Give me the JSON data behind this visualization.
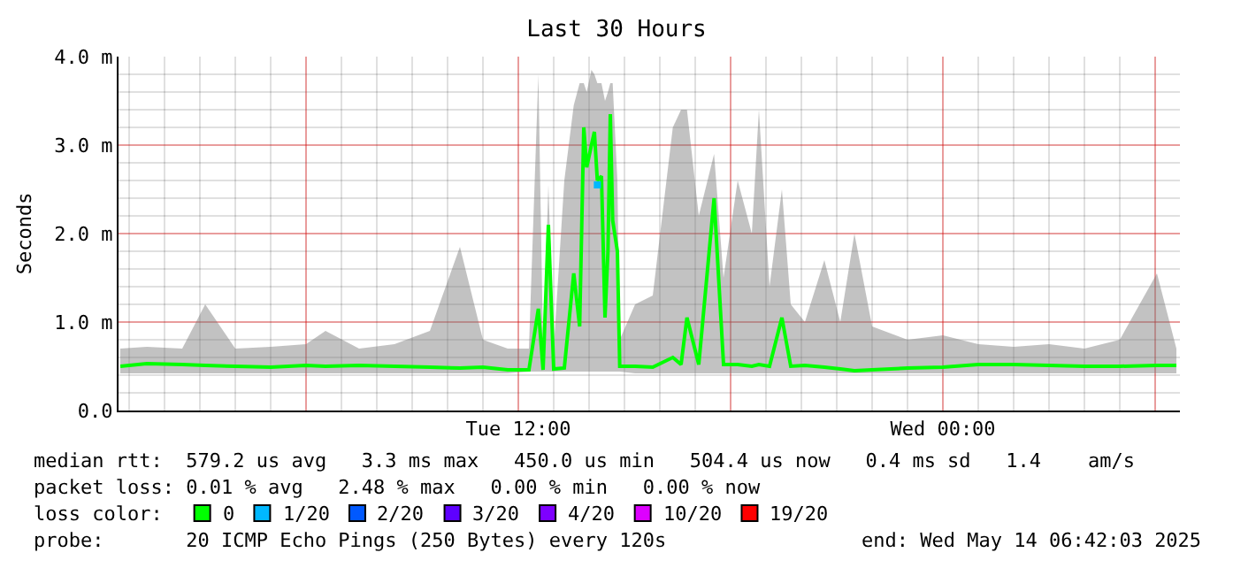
{
  "chart_data": {
    "type": "line",
    "title": "Last 30 Hours",
    "ylabel": "Seconds",
    "legend_title": "loss color:",
    "x": [
      "2025-05-13T00:45",
      "2025-05-13T01:30",
      "2025-05-13T02:30",
      "2025-05-13T03:09",
      "2025-05-13T04:00",
      "2025-05-13T05:00",
      "2025-05-13T06:00",
      "2025-05-13T06:33",
      "2025-05-13T07:30",
      "2025-05-13T08:30",
      "2025-05-13T09:30",
      "2025-05-13T10:21",
      "2025-05-13T11:00",
      "2025-05-13T11:42",
      "2025-05-13T12:18",
      "2025-05-13T12:34",
      "2025-05-13T12:42",
      "2025-05-13T12:51",
      "2025-05-13T13:00",
      "2025-05-13T13:18",
      "2025-05-13T13:34",
      "2025-05-13T13:44",
      "2025-05-13T13:51",
      "2025-05-13T13:56",
      "2025-05-13T14:04",
      "2025-05-13T14:09",
      "2025-05-13T14:14",
      "2025-05-13T14:21",
      "2025-05-13T14:27",
      "2025-05-13T14:32",
      "2025-05-13T14:36",
      "2025-05-13T14:40",
      "2025-05-13T14:48",
      "2025-05-13T14:52",
      "2025-05-13T15:18",
      "2025-05-13T15:48",
      "2025-05-13T16:22",
      "2025-05-13T16:36",
      "2025-05-13T16:46",
      "2025-05-13T17:06",
      "2025-05-13T17:32",
      "2025-05-13T17:48",
      "2025-05-13T18:12",
      "2025-05-13T18:36",
      "2025-05-13T18:48",
      "2025-05-13T19:06",
      "2025-05-13T19:27",
      "2025-05-13T19:42",
      "2025-05-13T20:06",
      "2025-05-13T20:39",
      "2025-05-13T21:06",
      "2025-05-13T21:30",
      "2025-05-13T22:00",
      "2025-05-13T23:00",
      "2025-05-14T00:00",
      "2025-05-14T01:00",
      "2025-05-14T02:00",
      "2025-05-14T03:00",
      "2025-05-14T04:00",
      "2025-05-14T05:00",
      "2025-05-14T06:03",
      "2025-05-14T06:36"
    ],
    "series": [
      {
        "name": "0",
        "color": "#00ff00",
        "values": [
          0.5,
          0.53,
          0.52,
          0.51,
          0.5,
          0.49,
          0.51,
          0.5,
          0.51,
          0.5,
          0.49,
          0.48,
          0.49,
          0.46,
          0.46,
          1.15,
          0.46,
          2.1,
          0.47,
          0.48,
          1.55,
          0.95,
          3.2,
          2.75,
          3.0,
          3.15,
          2.6,
          2.65,
          1.05,
          1.8,
          3.35,
          2.15,
          1.8,
          0.5,
          0.5,
          0.49,
          0.6,
          0.52,
          1.05,
          0.52,
          2.4,
          0.52,
          0.52,
          0.5,
          0.52,
          0.5,
          1.05,
          0.5,
          0.51,
          0.49,
          0.47,
          0.45,
          0.46,
          0.48,
          0.49,
          0.52,
          0.52,
          0.51,
          0.5,
          0.5,
          0.51,
          0.51
        ],
        "lower": [
          0.42,
          0.42,
          0.42,
          0.42,
          0.42,
          0.42,
          0.42,
          0.42,
          0.42,
          0.42,
          0.42,
          0.42,
          0.42,
          0.42,
          0.44,
          0.44,
          0.44,
          0.44,
          0.44,
          0.44,
          0.44,
          0.44,
          0.44,
          0.44,
          0.44,
          0.44,
          0.44,
          0.44,
          0.44,
          0.44,
          0.44,
          0.44,
          0.44,
          0.44,
          0.42,
          0.42,
          0.42,
          0.42,
          0.42,
          0.42,
          0.42,
          0.42,
          0.42,
          0.42,
          0.42,
          0.42,
          0.42,
          0.42,
          0.42,
          0.42,
          0.42,
          0.42,
          0.42,
          0.42,
          0.42,
          0.42,
          0.42,
          0.42,
          0.42,
          0.42,
          0.42,
          0.42
        ],
        "upper": [
          0.7,
          0.72,
          0.7,
          1.2,
          0.7,
          0.72,
          0.75,
          0.9,
          0.7,
          0.75,
          0.9,
          1.85,
          0.8,
          0.7,
          0.7,
          3.8,
          0.7,
          2.55,
          0.7,
          2.6,
          3.45,
          3.7,
          3.7,
          3.6,
          3.85,
          3.8,
          3.7,
          3.7,
          3.5,
          3.6,
          3.7,
          3.7,
          2.6,
          0.8,
          1.2,
          1.3,
          3.2,
          3.4,
          3.4,
          2.2,
          2.9,
          1.5,
          2.6,
          2.0,
          3.4,
          1.4,
          2.5,
          1.2,
          1.0,
          1.7,
          1.0,
          2.0,
          0.95,
          0.8,
          0.85,
          0.75,
          0.72,
          0.75,
          0.7,
          0.8,
          1.55,
          0.7
        ]
      },
      {
        "name": "1/20",
        "color": "#00b8ff",
        "type": "scatter",
        "marker": "square",
        "x": [
          "2025-05-13T14:14"
        ],
        "values": [
          2.55
        ]
      },
      {
        "name": "2/20",
        "color": "#0059ff",
        "type": "scatter",
        "values": [
          null,
          null,
          null,
          null,
          null,
          null,
          null,
          null,
          null,
          null,
          null,
          null,
          null,
          null,
          null,
          null,
          null,
          null,
          null,
          null,
          null,
          null,
          null,
          null,
          null,
          null,
          null,
          null,
          null,
          null,
          null,
          null,
          null,
          null,
          null,
          null,
          null,
          null,
          null,
          null,
          null,
          null,
          null,
          null,
          null,
          null,
          null,
          null,
          null,
          null,
          null,
          null,
          null,
          null,
          null,
          null,
          null,
          null,
          null,
          null,
          null,
          null
        ]
      },
      {
        "name": "3/20",
        "color": "#5e00ff",
        "type": "scatter",
        "values": [
          null,
          null,
          null,
          null,
          null,
          null,
          null,
          null,
          null,
          null,
          null,
          null,
          null,
          null,
          null,
          null,
          null,
          null,
          null,
          null,
          null,
          null,
          null,
          null,
          null,
          null,
          null,
          null,
          null,
          null,
          null,
          null,
          null,
          null,
          null,
          null,
          null,
          null,
          null,
          null,
          null,
          null,
          null,
          null,
          null,
          null,
          null,
          null,
          null,
          null,
          null,
          null,
          null,
          null,
          null,
          null,
          null,
          null,
          null,
          null,
          null,
          null
        ]
      },
      {
        "name": "4/20",
        "color": "#7e00ff",
        "type": "scatter",
        "values": [
          null,
          null,
          null,
          null,
          null,
          null,
          null,
          null,
          null,
          null,
          null,
          null,
          null,
          null,
          null,
          null,
          null,
          null,
          null,
          null,
          null,
          null,
          null,
          null,
          null,
          null,
          null,
          null,
          null,
          null,
          null,
          null,
          null,
          null,
          null,
          null,
          null,
          null,
          null,
          null,
          null,
          null,
          null,
          null,
          null,
          null,
          null,
          null,
          null,
          null,
          null,
          null,
          null,
          null,
          null,
          null,
          null,
          null,
          null,
          null,
          null,
          null
        ]
      },
      {
        "name": "10/20",
        "color": "#dd00ff",
        "type": "scatter",
        "values": [
          null,
          null,
          null,
          null,
          null,
          null,
          null,
          null,
          null,
          null,
          null,
          null,
          null,
          null,
          null,
          null,
          null,
          null,
          null,
          null,
          null,
          null,
          null,
          null,
          null,
          null,
          null,
          null,
          null,
          null,
          null,
          null,
          null,
          null,
          null,
          null,
          null,
          null,
          null,
          null,
          null,
          null,
          null,
          null,
          null,
          null,
          null,
          null,
          null,
          null,
          null,
          null,
          null,
          null,
          null,
          null,
          null,
          null,
          null,
          null,
          null,
          null
        ]
      },
      {
        "name": "19/20",
        "color": "#ff0000",
        "type": "scatter",
        "values": [
          null,
          null,
          null,
          null,
          null,
          null,
          null,
          null,
          null,
          null,
          null,
          null,
          null,
          null,
          null,
          null,
          null,
          null,
          null,
          null,
          null,
          null,
          null,
          null,
          null,
          null,
          null,
          null,
          null,
          null,
          null,
          null,
          null,
          null,
          null,
          null,
          null,
          null,
          null,
          null,
          null,
          null,
          null,
          null,
          null,
          null,
          null,
          null,
          null,
          null,
          null,
          null,
          null,
          null,
          null,
          null,
          null,
          null,
          null,
          null,
          null,
          null
        ]
      }
    ],
    "xlim": [
      "2025-05-13T00:42",
      "2025-05-14T06:42"
    ],
    "xticks": [
      {
        "value": "2025-05-13T06:00",
        "label": null
      },
      {
        "value": "2025-05-13T12:00",
        "label": "Tue 12:00"
      },
      {
        "value": "2025-05-13T18:00",
        "label": null
      },
      {
        "value": "2025-05-14T00:00",
        "label": "Wed 00:00"
      },
      {
        "value": "2025-05-14T06:00",
        "label": null
      }
    ],
    "ylim": [
      0,
      4
    ],
    "yticks": [
      {
        "value": 0,
        "label": "0.0"
      },
      {
        "value": 1,
        "label": "1.0 m"
      },
      {
        "value": 2,
        "label": "2.0 m"
      },
      {
        "value": 3,
        "label": "3.0 m"
      },
      {
        "value": 4,
        "label": "4.0 m"
      }
    ],
    "grid": true,
    "legend": "bottom",
    "marker": "none",
    "annotations": [
      "median rtt:  579.2 us avg   3.3 ms max   450.0 us min   504.4 us now   0.4 ms sd   1.4    am/s",
      "packet loss: 0.01 % avg   2.48 % max   0.00 % min   0.00 % now",
      "probe:       20 ICMP Echo Pings (250 Bytes) every 120s",
      "end: Wed May 14 06:42:03 2025"
    ]
  }
}
